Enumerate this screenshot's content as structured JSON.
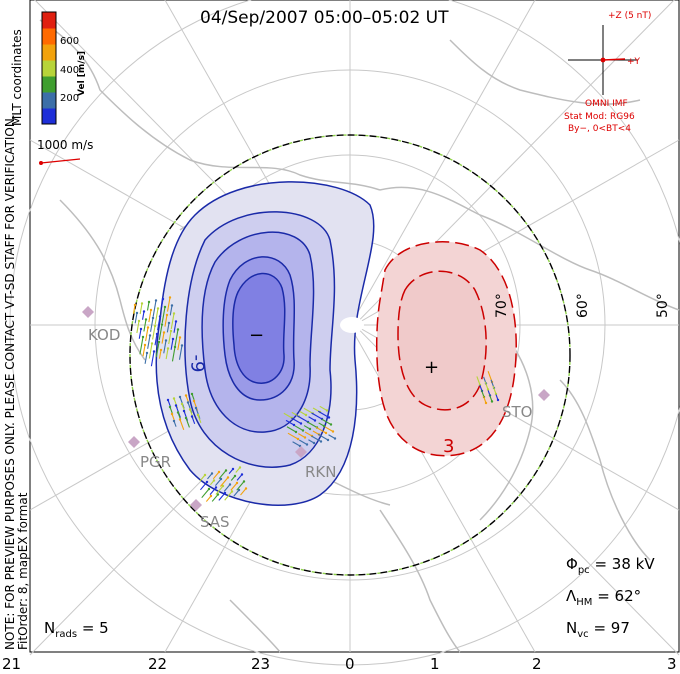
{
  "title": "04/Sep/2007 05:00–05:02 UT",
  "coordinates_label": "MLT coordinates",
  "colorbar": {
    "unit_label": "Vel [m/s]",
    "ticks": [
      "600",
      "400",
      "200"
    ],
    "colors": [
      "#e02010",
      "#ff6a00",
      "#f2a20c",
      "#b7d43a",
      "#3f9e2f",
      "#3c6fa8",
      "#1e2fd8"
    ]
  },
  "scale_vector": "1000 m/s",
  "preview_note": "NOTE: FOR PREVIEW PURPOSES ONLY. PLEASE CONTACT VT-SD STAFF FOR VERIFICATION.",
  "fit_note": "FitOrder: 8, mapEX format",
  "imf": {
    "z_label": "+Z (5 nT)",
    "y_label": "+Y",
    "title": "OMNI IMF",
    "model": "Stat Mod: RG96",
    "condition": "By−, 0<BT<4"
  },
  "latitude_labels": [
    "70°",
    "60°",
    "50°"
  ],
  "stations": [
    "KOD",
    "PGR",
    "SAS",
    "RKN",
    "STO"
  ],
  "contour_labels": {
    "negative": "-9",
    "positive": "3"
  },
  "cell_markers": {
    "negative": "−",
    "positive": "+"
  },
  "stats": {
    "phi_pc_label": "Φ",
    "phi_pc_sub": "pc",
    "phi_pc_value": "= 38 kV",
    "lambda_hm_label": "Λ",
    "lambda_hm_sub": "HM",
    "lambda_hm_value": "= 62°",
    "n_vc_label": "N",
    "n_vc_sub": "vc",
    "n_vc_value": "= 97",
    "n_rads_label": "N",
    "n_rads_sub": "rads",
    "n_rads_value": "= 5"
  },
  "mlt_ticks": [
    "21",
    "22",
    "23",
    "0",
    "1",
    "2",
    "3"
  ]
}
